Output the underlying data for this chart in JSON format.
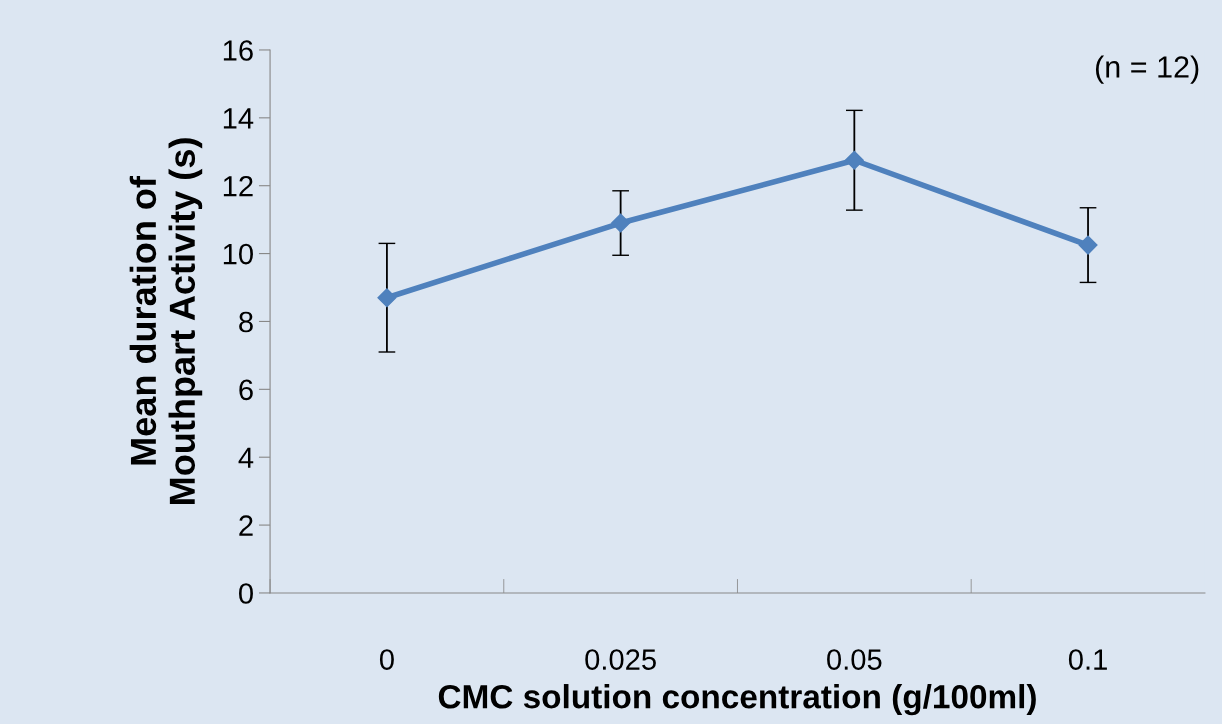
{
  "chart_data": {
    "type": "line",
    "xlabel": "CMC solution concentration (g/100ml)",
    "ylabel": "Mean duration of\nMouthpart Activity (s)",
    "categories": [
      "0",
      "0.025",
      "0.05",
      "0.1"
    ],
    "series": [
      {
        "color": "#4f81bd",
        "values": [
          8.7,
          10.9,
          12.75,
          10.25
        ],
        "errors": [
          1.6,
          0.95,
          1.47,
          1.1
        ]
      }
    ],
    "ylim": [
      0,
      16
    ],
    "yticks": [
      0,
      2,
      4,
      6,
      8,
      10,
      12,
      14,
      16
    ],
    "grid": false,
    "legend": false,
    "marker": "diamond",
    "line_style": "solid",
    "annotations": [
      "(n = 12)"
    ]
  }
}
